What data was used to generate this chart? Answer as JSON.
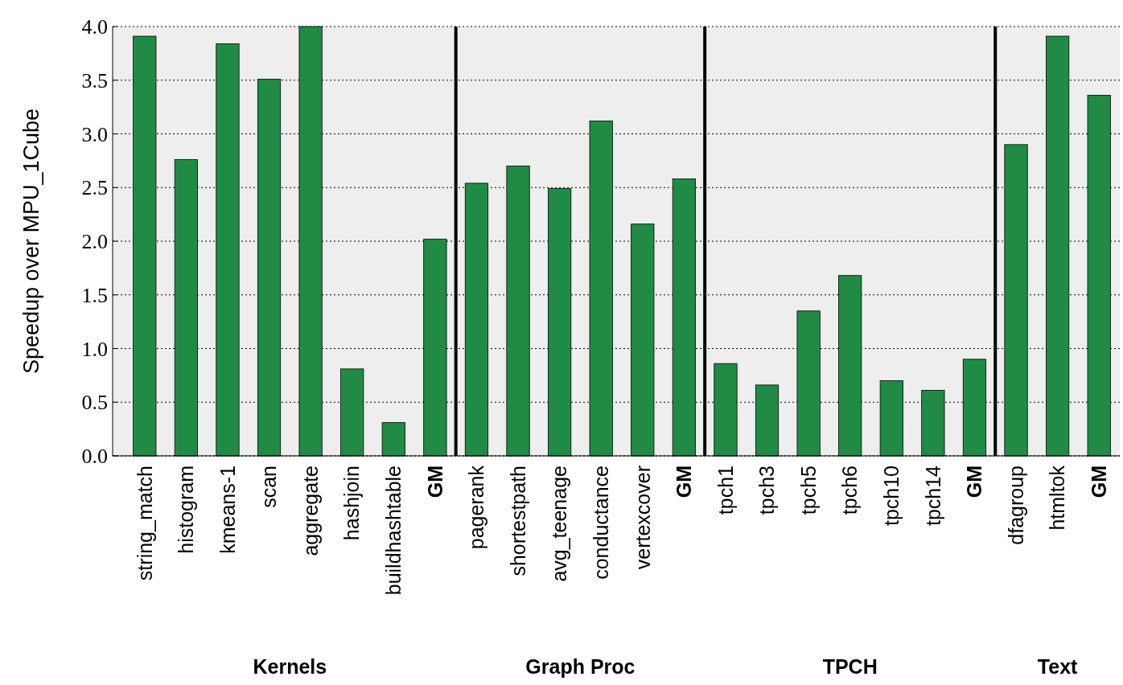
{
  "chart_data": {
    "type": "bar",
    "ylabel": "Speedup over MPU_1Cube",
    "categories": [
      "string_match",
      "histogram",
      "kmeans-1",
      "scan",
      "aggregate",
      "hashjoin",
      "buildhashtable",
      "GM",
      "pagerank",
      "shortestpath",
      "avg_teenage",
      "conductance",
      "vertexcover",
      "GM",
      "tpch1",
      "tpch3",
      "tpch5",
      "tpch6",
      "tpch10",
      "tpch14",
      "GM",
      "dfagroup",
      "htmltok",
      "GM"
    ],
    "values": [
      3.91,
      2.76,
      3.84,
      3.51,
      4.0,
      0.81,
      0.31,
      2.02,
      2.54,
      2.7,
      2.49,
      3.12,
      2.16,
      2.58,
      0.86,
      0.66,
      1.35,
      1.68,
      0.7,
      0.61,
      0.9,
      2.9,
      3.91,
      3.36
    ],
    "color": "#218b45",
    "ylim": [
      0,
      4
    ],
    "yticks": [
      {
        "value": 0,
        "label": "0.0"
      },
      {
        "value": 0.5,
        "label": "0.5"
      },
      {
        "value": 1,
        "label": "1.0"
      },
      {
        "value": 1.5,
        "label": "1.5"
      },
      {
        "value": 2,
        "label": "2.0"
      },
      {
        "value": 2.5,
        "label": "2.5"
      },
      {
        "value": 3,
        "label": "3.0"
      },
      {
        "value": 3.5,
        "label": "3.5"
      },
      {
        "value": 4,
        "label": "4.0"
      }
    ],
    "grid": "y",
    "annotations": [
      "Kernels",
      "Graph Proc",
      "TPCH",
      "Text"
    ]
  }
}
